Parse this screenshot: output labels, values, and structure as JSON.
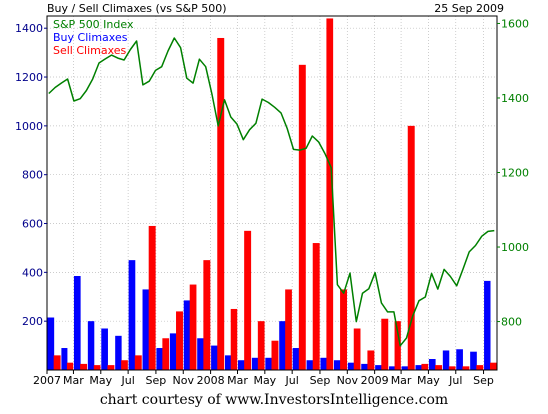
{
  "header": {
    "title": "Buy / Sell Climaxes (vs S&P 500)",
    "date": "25 Sep 2009"
  },
  "credit": "chart courtesy of www.InvestorsIntelligence.com",
  "colors": {
    "sp500": "#008000",
    "buy": "#0000ff",
    "sell": "#ff0000",
    "left_axis": "#00008b",
    "right_axis": "#008000",
    "grid": "#bbbbbb"
  },
  "chart_data": {
    "type": "bar",
    "x_tick_labels": [
      "2007",
      "Mar",
      "May",
      "Jul",
      "Sep",
      "Nov",
      "2008",
      "Mar",
      "May",
      "Jul",
      "Sep",
      "Nov",
      "2009",
      "Mar",
      "May",
      "Jul",
      "Sep"
    ],
    "y_left": {
      "ticks": [
        200,
        400,
        600,
        800,
        1000,
        1200,
        1400
      ],
      "range": [
        0,
        1450
      ]
    },
    "y_right": {
      "ticks": [
        800,
        1000,
        1200,
        1400,
        1600
      ],
      "range": [
        670,
        1620
      ]
    },
    "grid": true,
    "legend_position": "top-left",
    "series": [
      {
        "name": "S&P 500 Index",
        "axis": "right",
        "style": "line",
        "x": [
          "2007-01-05",
          "2007-01-19",
          "2007-02-02",
          "2007-02-16",
          "2007-03-02",
          "2007-03-16",
          "2007-03-30",
          "2007-04-13",
          "2007-04-27",
          "2007-05-11",
          "2007-05-25",
          "2007-06-08",
          "2007-06-22",
          "2007-07-06",
          "2007-07-20",
          "2007-08-03",
          "2007-08-17",
          "2007-08-31",
          "2007-09-14",
          "2007-09-28",
          "2007-10-12",
          "2007-10-26",
          "2007-11-09",
          "2007-11-23",
          "2007-12-07",
          "2007-12-21",
          "2008-01-04",
          "2008-01-18",
          "2008-02-01",
          "2008-02-15",
          "2008-02-29",
          "2008-03-14",
          "2008-03-28",
          "2008-04-11",
          "2008-04-25",
          "2008-05-09",
          "2008-05-23",
          "2008-06-06",
          "2008-06-20",
          "2008-07-04",
          "2008-07-18",
          "2008-08-01",
          "2008-08-15",
          "2008-08-29",
          "2008-09-12",
          "2008-09-26",
          "2008-10-10",
          "2008-10-24",
          "2008-11-07",
          "2008-11-21",
          "2008-12-05",
          "2008-12-19",
          "2009-01-02",
          "2009-01-16",
          "2009-01-30",
          "2009-02-13",
          "2009-02-27",
          "2009-03-13",
          "2009-03-27",
          "2009-04-10",
          "2009-04-24",
          "2009-05-08",
          "2009-05-22",
          "2009-06-05",
          "2009-06-19",
          "2009-07-03",
          "2009-07-17",
          "2009-07-31",
          "2009-08-14",
          "2009-08-28",
          "2009-09-11",
          "2009-09-25"
        ],
        "values": [
          1412,
          1428,
          1440,
          1451,
          1392,
          1398,
          1420,
          1451,
          1494,
          1505,
          1515,
          1507,
          1502,
          1530,
          1553,
          1435,
          1445,
          1474,
          1484,
          1526,
          1561,
          1535,
          1453,
          1440,
          1504,
          1484,
          1411,
          1325,
          1395,
          1349,
          1330,
          1288,
          1315,
          1332,
          1397,
          1388,
          1375,
          1360,
          1318,
          1262,
          1260,
          1265,
          1298,
          1282,
          1251,
          1213,
          899,
          876,
          930,
          800,
          876,
          888,
          931,
          850,
          826,
          826,
          735,
          756,
          815,
          856,
          866,
          929,
          887,
          940,
          921,
          896,
          940,
          987,
          1004,
          1029,
          1042,
          1044
        ]
      },
      {
        "name": "Buy Climaxes",
        "axis": "left",
        "style": "bar",
        "x": [
          "2007-01",
          "2007-02",
          "2007-03",
          "2007-04",
          "2007-05",
          "2007-06",
          "2007-07",
          "2007-08",
          "2007-09",
          "2007-10",
          "2007-11",
          "2007-12",
          "2008-01",
          "2008-02",
          "2008-03",
          "2008-04",
          "2008-05",
          "2008-06",
          "2008-07",
          "2008-08",
          "2008-09",
          "2008-10",
          "2008-11",
          "2008-12",
          "2009-01",
          "2009-02",
          "2009-03",
          "2009-04",
          "2009-05",
          "2009-06",
          "2009-07",
          "2009-08",
          "2009-09"
        ],
        "values": [
          215,
          90,
          385,
          200,
          170,
          140,
          450,
          330,
          90,
          150,
          285,
          130,
          100,
          60,
          40,
          50,
          50,
          200,
          90,
          40,
          50,
          40,
          30,
          25,
          20,
          15,
          15,
          20,
          45,
          80,
          85,
          75,
          365
        ]
      },
      {
        "name": "Sell Climaxes",
        "axis": "left",
        "style": "bar",
        "x": [
          "2007-01",
          "2007-02",
          "2007-03",
          "2007-04",
          "2007-05",
          "2007-06",
          "2007-07",
          "2007-08",
          "2007-09",
          "2007-10",
          "2007-11",
          "2007-12",
          "2008-01",
          "2008-02",
          "2008-03",
          "2008-04",
          "2008-05",
          "2008-06",
          "2008-07",
          "2008-08",
          "2008-09",
          "2008-10",
          "2008-11",
          "2008-12",
          "2009-01",
          "2009-02",
          "2009-03",
          "2009-04",
          "2009-05",
          "2009-06",
          "2009-07",
          "2009-08",
          "2009-09"
        ],
        "values": [
          60,
          30,
          25,
          20,
          20,
          40,
          60,
          590,
          130,
          240,
          350,
          450,
          1360,
          250,
          570,
          200,
          120,
          330,
          1250,
          520,
          1440,
          330,
          170,
          80,
          210,
          200,
          1000,
          25,
          20,
          15,
          15,
          20,
          30
        ]
      }
    ]
  }
}
